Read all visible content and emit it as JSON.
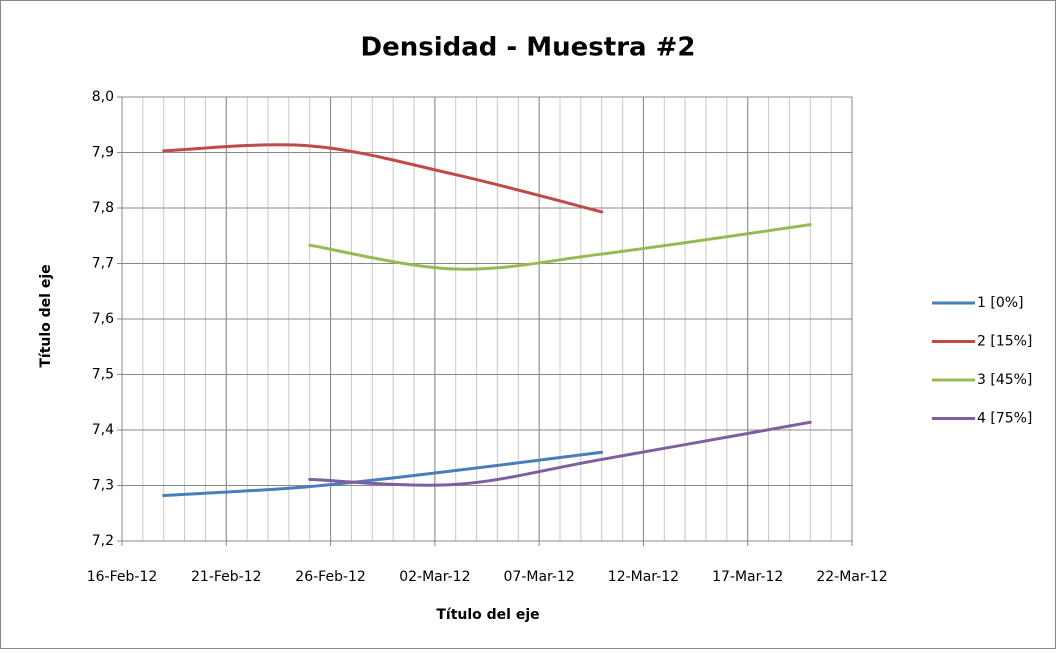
{
  "chart_data": {
    "type": "line",
    "title": "Densidad - Muestra #2",
    "x_label": "Título del eje",
    "y_label": "Título del eje",
    "xlim": [
      "2012-02-16",
      "2012-03-22"
    ],
    "xticks": [
      {
        "value": "2012-02-16",
        "label": "16-Feb-12"
      },
      {
        "value": "2012-02-21",
        "label": "21-Feb-12"
      },
      {
        "value": "2012-02-26",
        "label": "26-Feb-12"
      },
      {
        "value": "2012-03-02",
        "label": "02-Mar-12"
      },
      {
        "value": "2012-03-07",
        "label": "07-Mar-12"
      },
      {
        "value": "2012-03-12",
        "label": "12-Mar-12"
      },
      {
        "value": "2012-03-17",
        "label": "17-Mar-12"
      },
      {
        "value": "2012-03-22",
        "label": "22-Mar-12"
      }
    ],
    "ylim": [
      7.2,
      8.0
    ],
    "yticks": [
      {
        "value": 7.2,
        "label": "7,2"
      },
      {
        "value": 7.3,
        "label": "7,3"
      },
      {
        "value": 7.4,
        "label": "7,4"
      },
      {
        "value": 7.5,
        "label": "7,5"
      },
      {
        "value": 7.6,
        "label": "7,6"
      },
      {
        "value": 7.7,
        "label": "7,7"
      },
      {
        "value": 7.8,
        "label": "7,8"
      },
      {
        "value": 7.9,
        "label": "7,9"
      },
      {
        "value": 8.0,
        "label": "8,0"
      }
    ],
    "grid": true,
    "smooth": true,
    "legend": "right",
    "series": [
      {
        "name": "1 [0%]",
        "color": "#4a7ebb",
        "x": [
          "2012-02-18",
          "2012-02-25",
          "2012-03-03",
          "2012-03-10"
        ],
        "values": [
          7.282,
          7.298,
          7.327,
          7.36
        ]
      },
      {
        "name": "2 [15%]",
        "color": "#be4b48",
        "x": [
          "2012-02-18",
          "2012-02-25",
          "2012-03-03",
          "2012-03-10"
        ],
        "values": [
          7.903,
          7.912,
          7.86,
          7.793
        ]
      },
      {
        "name": "3 [45%]",
        "color": "#98b954",
        "x": [
          "2012-02-25",
          "2012-03-03",
          "2012-03-10",
          "2012-03-20"
        ],
        "values": [
          7.733,
          7.69,
          7.717,
          7.77
        ]
      },
      {
        "name": "4 [75%]",
        "color": "#7d60a0",
        "x": [
          "2012-02-25",
          "2012-03-03",
          "2012-03-10",
          "2012-03-20"
        ],
        "values": [
          7.311,
          7.302,
          7.347,
          7.414
        ]
      }
    ]
  }
}
